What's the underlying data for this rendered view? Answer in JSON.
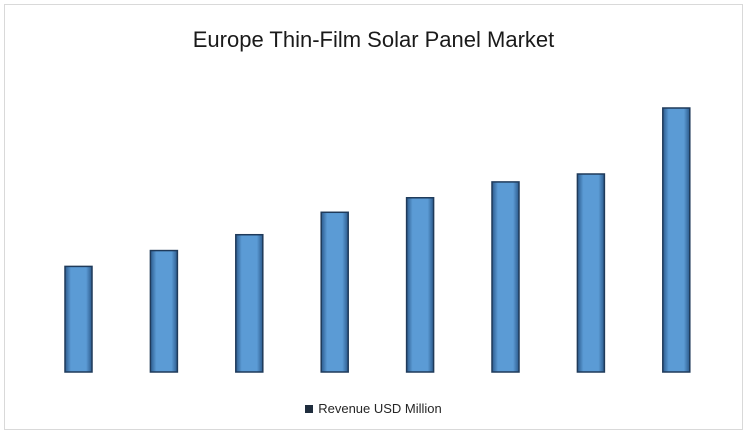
{
  "chart_data": {
    "type": "bar",
    "title": "Europe Thin-Film Solar Panel Market",
    "xlabel": "",
    "ylabel": "",
    "categories": [
      "",
      "",
      "",
      "",
      "",
      "",
      "",
      ""
    ],
    "series": [
      {
        "name": "Revenue USD Million",
        "values": [
          40,
          46,
          52,
          60.5,
          66,
          72,
          75,
          100
        ]
      }
    ],
    "ylim": [
      0,
      100
    ],
    "grid": false,
    "legend": "bottom",
    "colors": {
      "bar": "#5b9bd5",
      "bar_edge": "#1f3a5a",
      "legend_swatch": "#1f2d3d"
    }
  }
}
